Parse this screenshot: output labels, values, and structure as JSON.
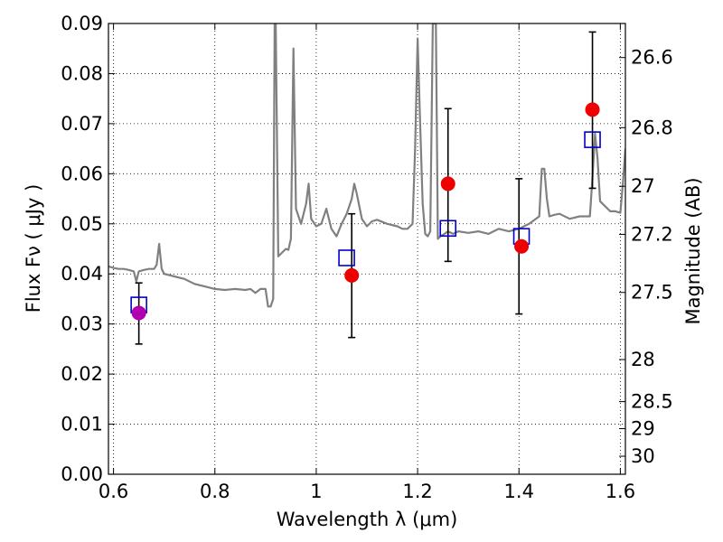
{
  "chart_data": {
    "type": "scatter",
    "xlabel": "Wavelength  λ (μm)",
    "ylabel": "Flux  Fν  ( μJy )",
    "y2label": "Magnitude (AB)",
    "xlim": [
      0.59,
      1.61
    ],
    "ylim": [
      0.0,
      0.09
    ],
    "grid": true,
    "x_ticks": [
      0.6,
      0.8,
      1.0,
      1.2,
      1.4,
      1.6
    ],
    "x_tick_labels": [
      "0.6",
      "0.8",
      "1",
      "1.2",
      "1.4",
      "1.6"
    ],
    "y_ticks": [
      0.0,
      0.01,
      0.02,
      0.03,
      0.04,
      0.05,
      0.06,
      0.07,
      0.08,
      0.09
    ],
    "y_tick_labels": [
      "0.00",
      "0.01",
      "0.02",
      "0.03",
      "0.04",
      "0.05",
      "0.06",
      "0.07",
      "0.08",
      "0.09"
    ],
    "y2_ticks": [
      {
        "label": "26.6",
        "flux": 0.0832
      },
      {
        "label": "26.8",
        "flux": 0.0692
      },
      {
        "label": "27",
        "flux": 0.0575
      },
      {
        "label": "27.2",
        "flux": 0.0479
      },
      {
        "label": "27.5",
        "flux": 0.0363
      },
      {
        "label": "28",
        "flux": 0.0229
      },
      {
        "label": "28.5",
        "flux": 0.0145
      },
      {
        "label": "29",
        "flux": 0.0091
      },
      {
        "label": "30",
        "flux": 0.0036
      }
    ],
    "series": [
      {
        "kind": "line",
        "color": "#808080",
        "x": [
          0.59,
          0.6,
          0.61,
          0.62,
          0.63,
          0.64,
          0.645,
          0.65,
          0.66,
          0.67,
          0.68,
          0.685,
          0.69,
          0.695,
          0.7,
          0.72,
          0.74,
          0.76,
          0.78,
          0.8,
          0.82,
          0.84,
          0.86,
          0.87,
          0.88,
          0.89,
          0.9,
          0.905,
          0.91,
          0.915,
          0.918,
          0.92,
          0.925,
          0.93,
          0.94,
          0.945,
          0.95,
          0.955,
          0.96,
          0.97,
          0.98,
          0.985,
          0.99,
          1.0,
          1.01,
          1.02,
          1.03,
          1.04,
          1.05,
          1.06,
          1.07,
          1.075,
          1.08,
          1.09,
          1.1,
          1.11,
          1.12,
          1.14,
          1.16,
          1.17,
          1.18,
          1.19,
          1.195,
          1.2,
          1.205,
          1.21,
          1.215,
          1.22,
          1.225,
          1.23,
          1.232,
          1.236,
          1.24,
          1.245,
          1.25,
          1.26,
          1.27,
          1.28,
          1.3,
          1.32,
          1.34,
          1.36,
          1.38,
          1.4,
          1.42,
          1.44,
          1.445,
          1.45,
          1.455,
          1.46,
          1.47,
          1.48,
          1.5,
          1.52,
          1.54,
          1.545,
          1.55,
          1.555,
          1.56,
          1.58,
          1.59,
          1.6,
          1.605,
          1.61
        ],
        "y": [
          0.0415,
          0.0412,
          0.041,
          0.041,
          0.0408,
          0.0405,
          0.0385,
          0.0405,
          0.0408,
          0.041,
          0.041,
          0.0418,
          0.046,
          0.041,
          0.04,
          0.0395,
          0.039,
          0.038,
          0.0375,
          0.037,
          0.0368,
          0.037,
          0.0368,
          0.037,
          0.0362,
          0.037,
          0.037,
          0.0335,
          0.0335,
          0.035,
          0.09,
          0.09,
          0.0435,
          0.044,
          0.045,
          0.0448,
          0.047,
          0.085,
          0.053,
          0.05,
          0.054,
          0.058,
          0.051,
          0.0495,
          0.05,
          0.053,
          0.049,
          0.0475,
          0.05,
          0.052,
          0.055,
          0.058,
          0.056,
          0.051,
          0.0495,
          0.0505,
          0.0508,
          0.05,
          0.0495,
          0.049,
          0.049,
          0.05,
          0.065,
          0.087,
          0.07,
          0.054,
          0.048,
          0.0475,
          0.0485,
          0.09,
          0.09,
          0.09,
          0.047,
          0.0475,
          0.0478,
          0.0485,
          0.048,
          0.0485,
          0.0482,
          0.0485,
          0.048,
          0.049,
          0.0485,
          0.049,
          0.05,
          0.0515,
          0.061,
          0.061,
          0.055,
          0.0515,
          0.0518,
          0.052,
          0.051,
          0.0515,
          0.0515,
          0.059,
          0.068,
          0.063,
          0.0545,
          0.0525,
          0.0525,
          0.0522,
          0.058,
          0.065
        ]
      },
      {
        "kind": "errorbar",
        "color": "#000000",
        "points": [
          {
            "x": 0.65,
            "ylow": 0.026,
            "yhigh": 0.0382
          },
          {
            "x": 1.07,
            "ylow": 0.0273,
            "yhigh": 0.052
          },
          {
            "x": 1.26,
            "ylow": 0.0425,
            "yhigh": 0.073
          },
          {
            "x": 1.4,
            "ylow": 0.032,
            "yhigh": 0.059
          },
          {
            "x": 1.545,
            "ylow": 0.0571,
            "yhigh": 0.0883
          }
        ]
      },
      {
        "kind": "square",
        "color": "#0000cc",
        "points": [
          {
            "x": 0.65,
            "y": 0.0338
          },
          {
            "x": 1.06,
            "y": 0.0432
          },
          {
            "x": 1.26,
            "y": 0.0491
          },
          {
            "x": 1.405,
            "y": 0.0475
          },
          {
            "x": 1.545,
            "y": 0.0668
          }
        ]
      },
      {
        "kind": "circle",
        "points": [
          {
            "x": 0.65,
            "y": 0.0322,
            "color": "#b000b0"
          },
          {
            "x": 1.07,
            "y": 0.0397,
            "color": "#ee0000"
          },
          {
            "x": 1.26,
            "y": 0.058,
            "color": "#ee0000"
          },
          {
            "x": 1.405,
            "y": 0.0455,
            "color": "#ee0000"
          },
          {
            "x": 1.545,
            "y": 0.0728,
            "color": "#ee0000"
          }
        ]
      }
    ]
  }
}
